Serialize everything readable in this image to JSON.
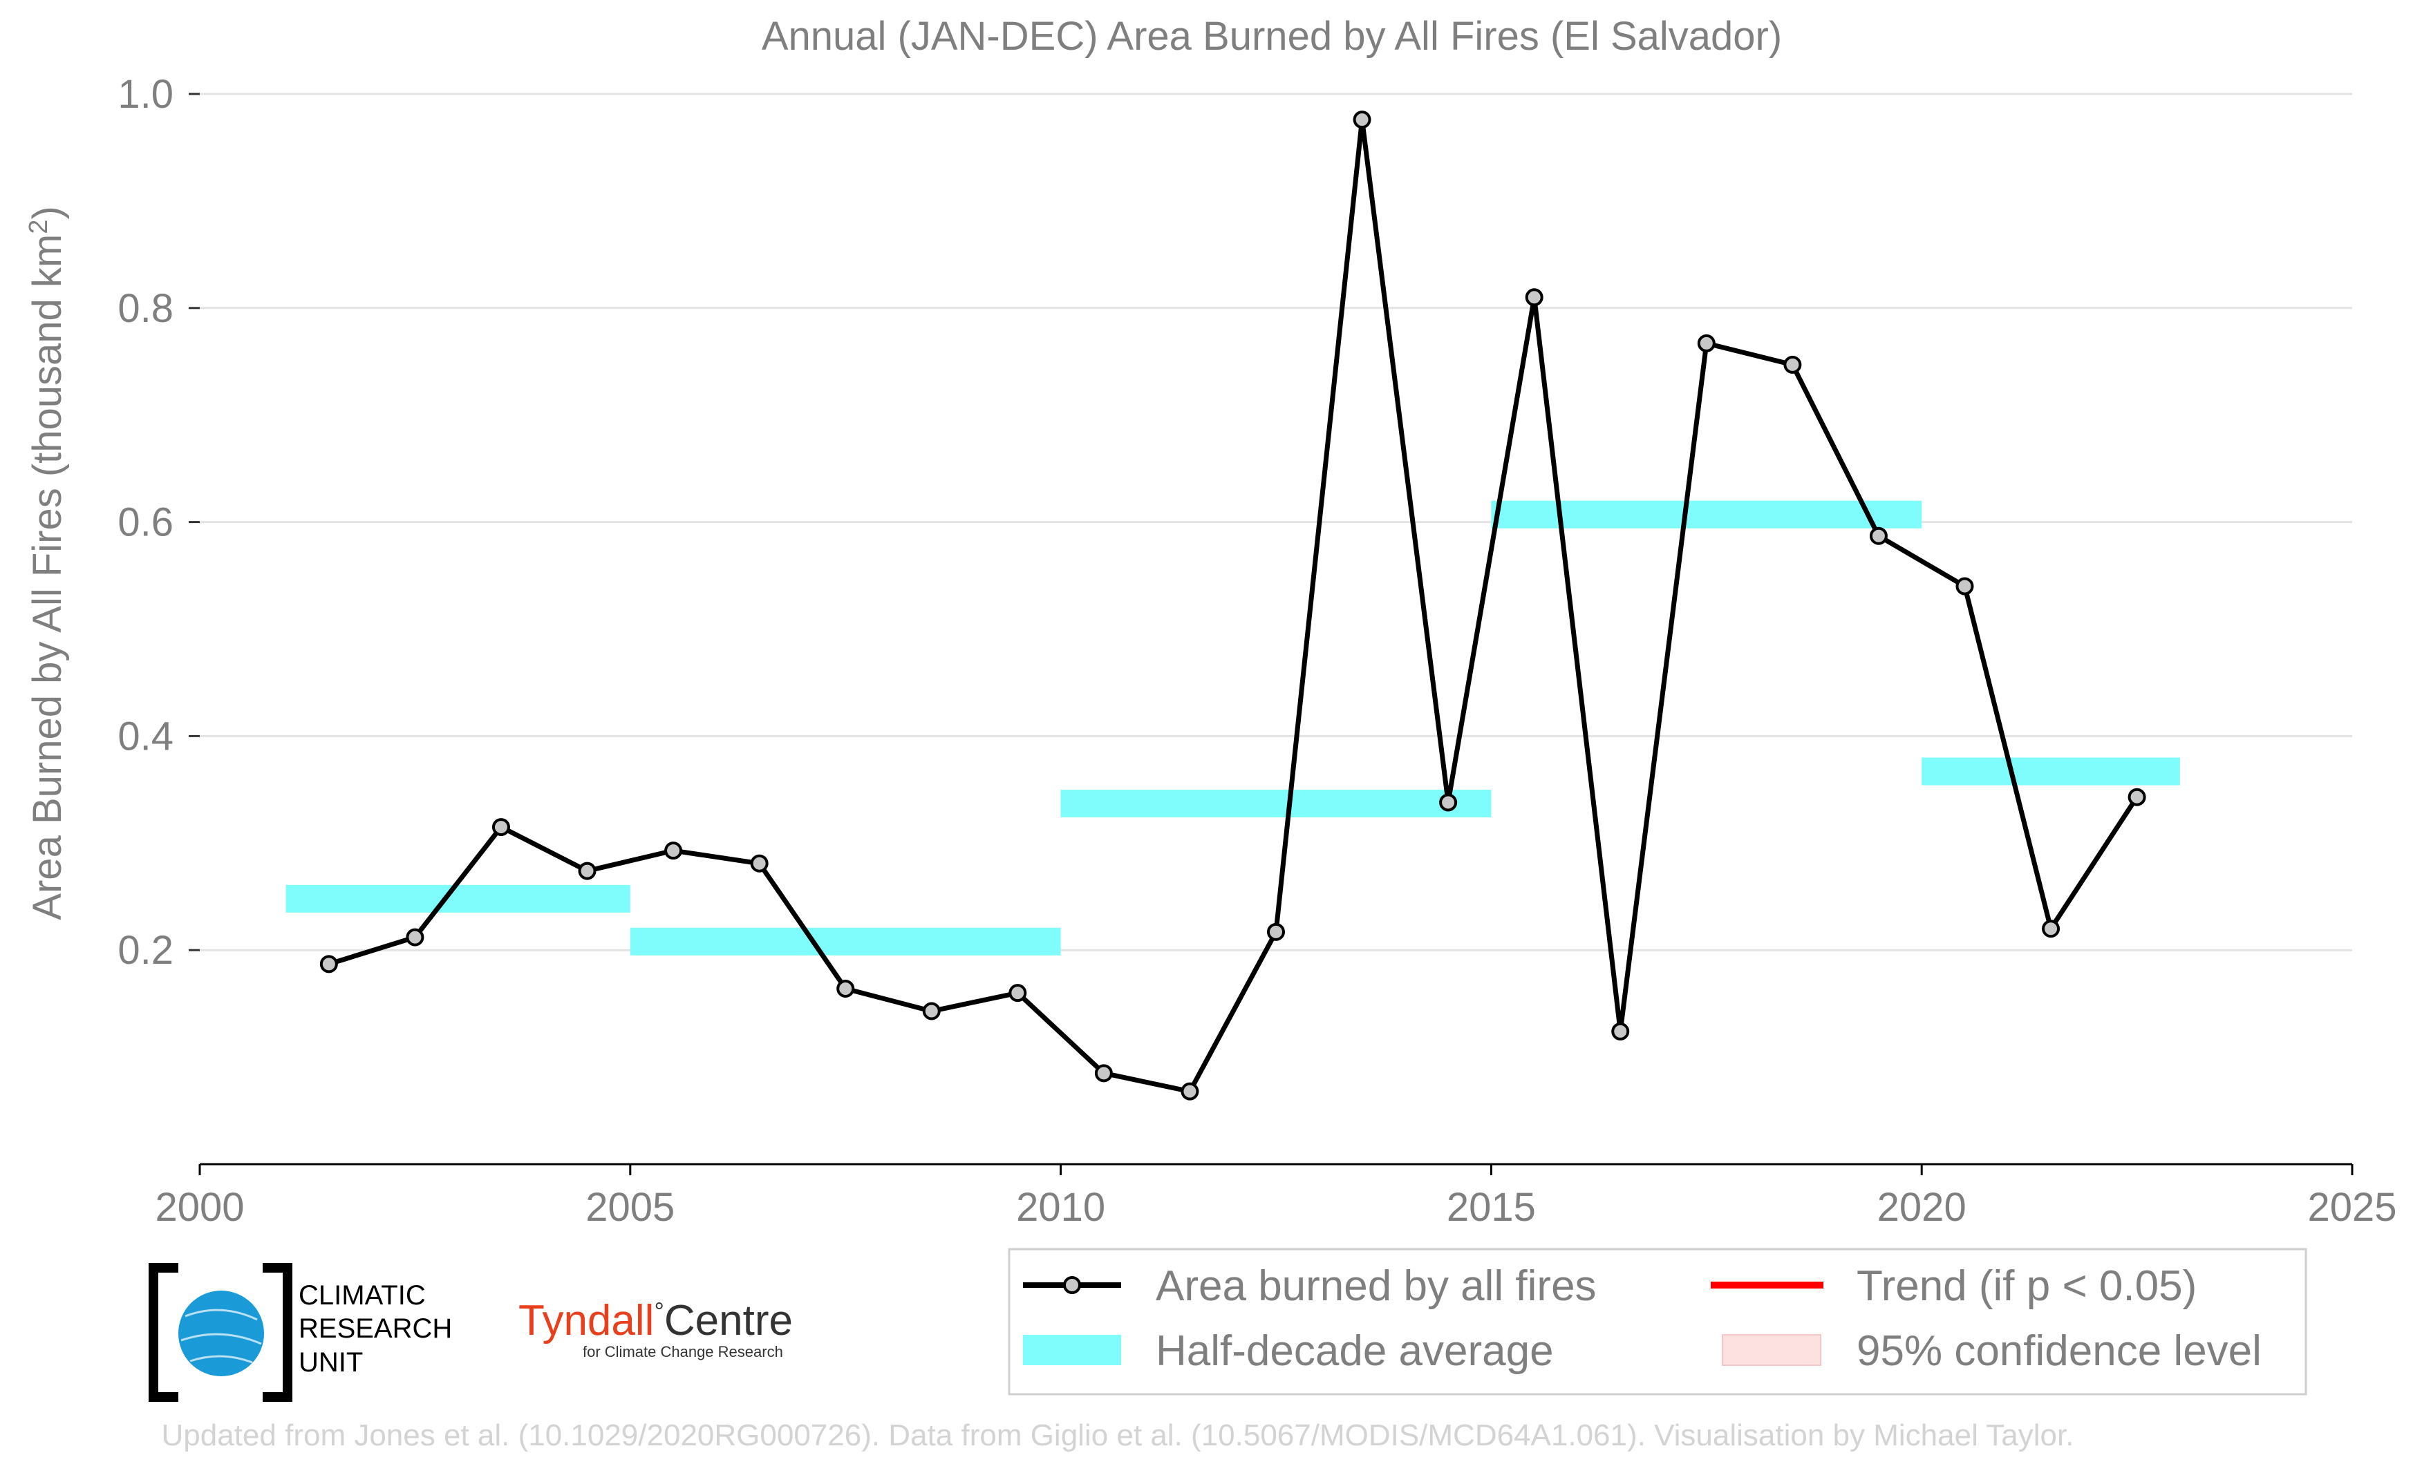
{
  "chart_data": {
    "type": "line",
    "title": "Annual (JAN-DEC) Area Burned by All Fires (El Salvador)",
    "ylabel": "Area Burned by All Fires (thousand km",
    "ylabel_sup": "2",
    "ylabel_close": ")",
    "xlim": [
      2000,
      2025
    ],
    "ylim": [
      0.0,
      1.0
    ],
    "x_ticks": [
      "2000",
      "2005",
      "2010",
      "2015",
      "2020",
      "2025"
    ],
    "x_tick_values": [
      2000,
      2005,
      2010,
      2015,
      2020,
      2025
    ],
    "y_ticks": [
      "0.2",
      "0.4",
      "0.6",
      "0.8",
      "1.0"
    ],
    "y_tick_values": [
      0.2,
      0.4,
      0.6,
      0.8,
      1.0
    ],
    "grid": true,
    "series": [
      {
        "name": "Area burned by all fires",
        "x": [
          2001.5,
          2002.5,
          2003.5,
          2004.5,
          2005.5,
          2006.5,
          2007.5,
          2008.5,
          2009.5,
          2010.5,
          2011.5,
          2012.5,
          2013.5,
          2014.5,
          2015.5,
          2016.5,
          2017.5,
          2018.5,
          2019.5,
          2020.5,
          2021.5,
          2022.5
        ],
        "values": [
          0.187,
          0.212,
          0.315,
          0.274,
          0.293,
          0.281,
          0.164,
          0.143,
          0.16,
          0.085,
          0.068,
          0.217,
          0.976,
          0.338,
          0.81,
          0.124,
          0.767,
          0.747,
          0.587,
          0.54,
          0.22,
          0.343
        ],
        "color": "#000000",
        "marker_fill": "#c8c8c8"
      }
    ],
    "half_decade_average": {
      "name": "Half-decade average",
      "color": "#7ffcfc",
      "segments": [
        {
          "x0": 2001,
          "x1": 2005,
          "value": 0.248
        },
        {
          "x0": 2005,
          "x1": 2010,
          "value": 0.208
        },
        {
          "x0": 2010,
          "x1": 2015,
          "value": 0.337
        },
        {
          "x0": 2015,
          "x1": 2020,
          "value": 0.607
        },
        {
          "x0": 2020,
          "x1": 2023,
          "value": 0.367
        }
      ]
    },
    "legend": {
      "placement": "bottom-right",
      "entries": [
        {
          "key": "line",
          "label": "Area burned by all fires",
          "color": "#000000"
        },
        {
          "key": "trend",
          "label": "Trend (if p < 0.05)",
          "color": "#ff0000"
        },
        {
          "key": "band",
          "label": "Half-decade average",
          "color": "#7ffcfc"
        },
        {
          "key": "ci",
          "label": "95% confidence level",
          "color": "#fde0e0"
        }
      ]
    }
  },
  "logos": {
    "cru": {
      "line1": "CLIMATIC",
      "line2": "RESEARCH",
      "line3": "UNIT",
      "color": "#1a9ad6"
    },
    "tyndall": {
      "name_colored": "Tyndall",
      "degree": "°",
      "name_dark": "Centre",
      "subtitle": "for Climate Change Research",
      "color": "#e8401c"
    }
  },
  "footer": "Updated from Jones et al. (10.1029/2020RG000726). Data from Giglio et al. (10.5067/MODIS/MCD64A1.061). Visualisation by Michael Taylor."
}
